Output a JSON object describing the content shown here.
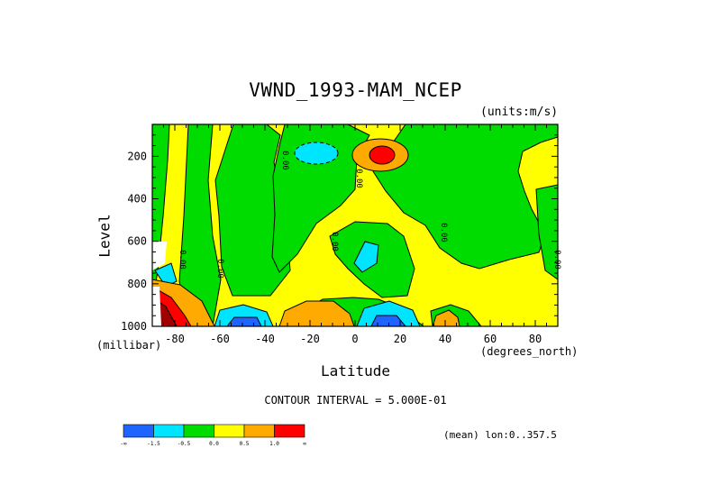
{
  "title": "VWND_1993-MAM_NCEP",
  "units_label": "(units:m/s)",
  "ylabel": "Level",
  "y_unit": "(millibar)",
  "xlabel": "Latitude",
  "x_unit": "(degrees_north)",
  "contour_text": "CONTOUR INTERVAL = 5.000E-01",
  "mean_text": "(mean) lon:0..357.5",
  "chart_data": {
    "type": "heatmap",
    "title": "VWND_1993-MAM_NCEP",
    "xlabel": "Latitude",
    "ylabel": "Level",
    "xlim": [
      -90,
      90
    ],
    "ylim": [
      1000,
      50
    ],
    "x_ticks": [
      -80,
      -60,
      -40,
      -20,
      0,
      20,
      40,
      60,
      80
    ],
    "y_ticks": [
      200,
      400,
      600,
      800,
      1000
    ],
    "contour_labels": [
      "0.00",
      "0.00",
      "0.00",
      "0.00",
      "0.00",
      "0.00",
      "0.00"
    ],
    "colorbar": {
      "labels": [
        "-∞",
        "-1.5",
        "-0.5",
        "0.0",
        "0.5",
        "1.0",
        "∞"
      ],
      "colors": [
        "#1e64ff",
        "#00e5ff",
        "#00dc00",
        "#ffff00",
        "#ffaa00",
        "#ff0000"
      ]
    },
    "field_colors": {
      "white": "#ffffff",
      "darkred": "#a00000"
    }
  }
}
